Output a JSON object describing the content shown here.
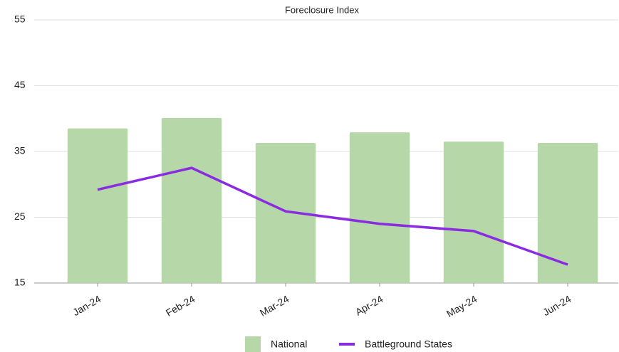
{
  "chart_data": {
    "type": "bar+line",
    "title": "Foreclosure Index",
    "categories": [
      "Jan-24",
      "Feb-24",
      "Mar-24",
      "Apr-24",
      "May-24",
      "Jun-24"
    ],
    "series": [
      {
        "name": "National",
        "type": "bar",
        "color": "#b6d7a8",
        "values": [
          38.5,
          40.1,
          36.3,
          37.9,
          36.5,
          36.3
        ]
      },
      {
        "name": "Battleground States",
        "type": "line",
        "color": "#8a2be2",
        "values": [
          29.2,
          32.5,
          25.9,
          24.0,
          22.9,
          17.8
        ]
      }
    ],
    "ylim": [
      15,
      55
    ],
    "yticks": [
      15,
      25,
      35,
      45,
      55
    ],
    "grid": true,
    "legend": "bottom"
  }
}
